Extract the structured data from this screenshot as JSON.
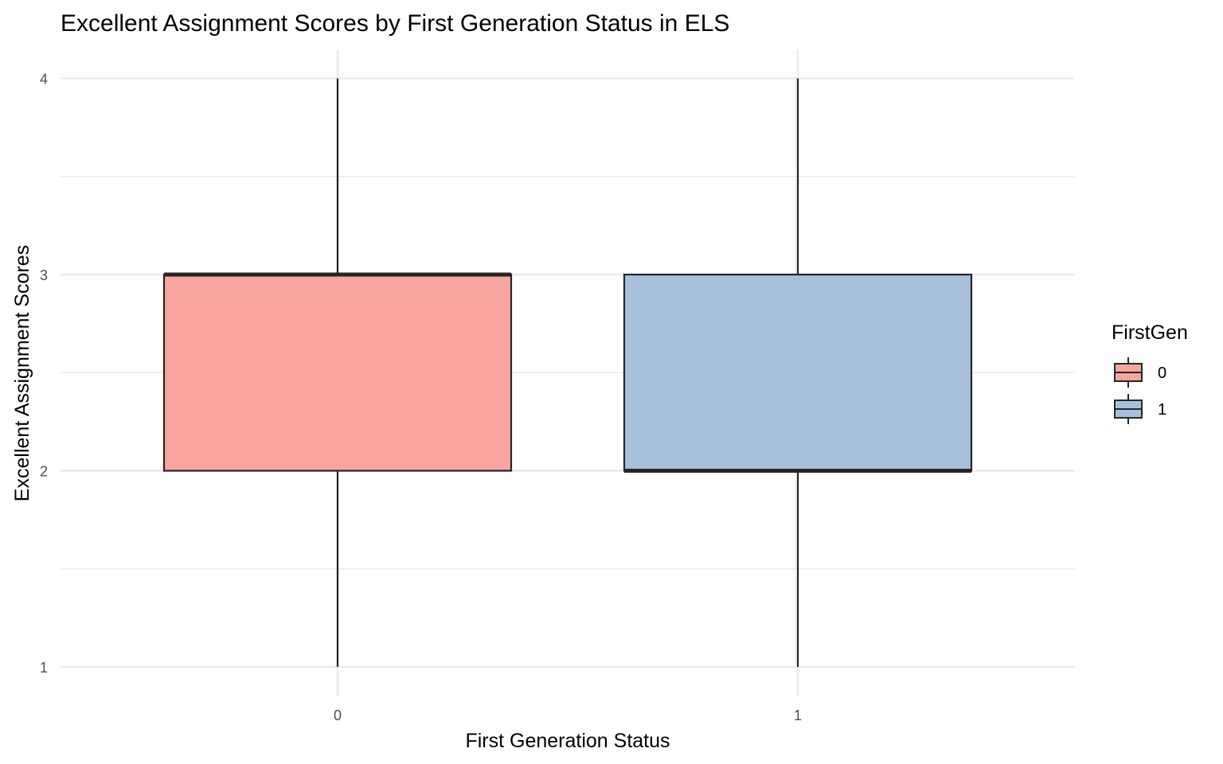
{
  "chart_data": {
    "type": "boxplot",
    "title": "Excellent Assignment Scores by First Generation Status in ELS",
    "xlabel": "First Generation Status",
    "ylabel": "Excellent Assignment Scores",
    "categories": [
      "0",
      "1"
    ],
    "boxes": [
      {
        "category": "0",
        "min": 1,
        "q1": 2,
        "median": 3,
        "q3": 3,
        "max": 4,
        "color": "#F8A5A0"
      },
      {
        "category": "1",
        "min": 1,
        "q1": 2,
        "median": 2,
        "q3": 3,
        "max": 4,
        "color": "#A7C1DC"
      }
    ],
    "ylim": [
      0.9,
      4.15
    ],
    "y_ticks": [
      "1",
      "2",
      "3",
      "4"
    ],
    "grid": true,
    "legend": {
      "title": "FirstGen",
      "position": "right",
      "entries": [
        {
          "label": "0",
          "color": "#F8A5A0"
        },
        {
          "label": "1",
          "color": "#A7C1DC"
        }
      ]
    }
  }
}
